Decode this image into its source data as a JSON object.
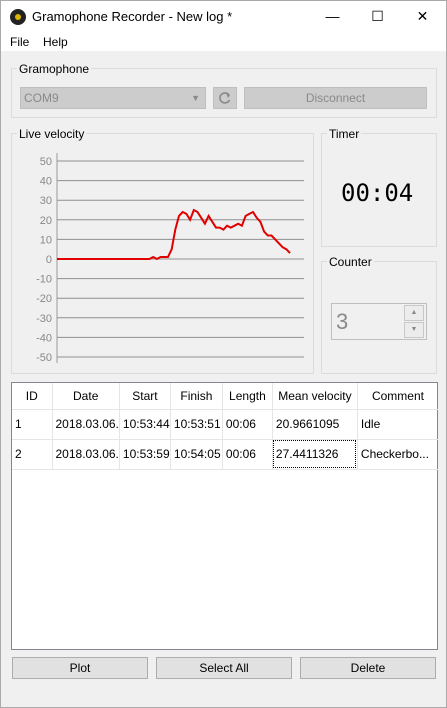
{
  "window": {
    "title": "Gramophone Recorder - New log *",
    "minimize": "—",
    "maximize": "☐",
    "close": "✕"
  },
  "menu": {
    "file": "File",
    "help": "Help"
  },
  "gramophone": {
    "title": "Gramophone",
    "port": "COM9",
    "refresh_icon": "refresh-icon",
    "disconnect": "Disconnect"
  },
  "chart_data": {
    "type": "line",
    "title": "Live velocity",
    "ylim": [
      -55,
      55
    ],
    "y_ticks": [
      "50",
      "40",
      "30",
      "20",
      "10",
      "0",
      "-10",
      "-20",
      "-30",
      "-40",
      "-50"
    ],
    "grid": true,
    "series": [
      {
        "color": "#e00000",
        "values": [
          0,
          0,
          0,
          0,
          0,
          0,
          0,
          0,
          0,
          0,
          0,
          0,
          0,
          0,
          0,
          0,
          0,
          0,
          0,
          0,
          0,
          0,
          0,
          0,
          0,
          0,
          1,
          0,
          1,
          1,
          1,
          5,
          15,
          22,
          24,
          23,
          20,
          25,
          24,
          21,
          18,
          22,
          19,
          16,
          16,
          15,
          17,
          16,
          17,
          18,
          17,
          22,
          23,
          24,
          21,
          19,
          14,
          12,
          12,
          10,
          8,
          6,
          5,
          3
        ]
      }
    ]
  },
  "timer": {
    "title": "Timer",
    "value": "00:04"
  },
  "counter": {
    "title": "Counter",
    "value": "3",
    "up": "▲",
    "down": "▼"
  },
  "table": {
    "headers": [
      "ID",
      "Date",
      "Start",
      "Finish",
      "Length",
      "Mean velocity",
      "Comment"
    ],
    "rows": [
      [
        "1",
        "2018.03.06.",
        "10:53:44",
        "10:53:51",
        "00:06",
        "20.9661095",
        "Idle"
      ],
      [
        "2",
        "2018.03.06.",
        "10:53:59",
        "10:54:05",
        "00:06",
        "27.4411326",
        "Checkerbo..."
      ]
    ]
  },
  "buttons": {
    "plot": "Plot",
    "select_all": "Select All",
    "delete": "Delete"
  }
}
